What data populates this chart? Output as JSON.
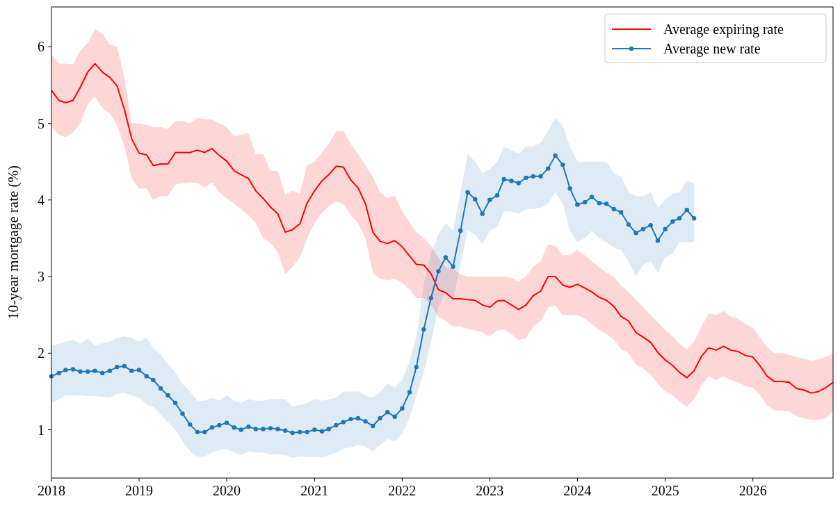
{
  "chart_data": {
    "type": "line",
    "ylabel": "10-year mortgage rate (%)",
    "legend": "top right",
    "grid": false,
    "xlim": [
      "2018-01",
      "2026-12"
    ],
    "xticks": [
      "2018",
      "2019",
      "2020",
      "2021",
      "2022",
      "2023",
      "2024",
      "2025",
      "2026"
    ],
    "ylim": [
      0.37,
      6.52
    ],
    "yticks": [
      1,
      2,
      3,
      4,
      5,
      6
    ],
    "series": [
      {
        "name": "Average expiring rate",
        "color": "#ff0000",
        "marker": "none",
        "x": [
          "2018-01",
          "2018-02",
          "2018-03",
          "2018-04",
          "2018-05",
          "2018-06",
          "2018-07",
          "2018-08",
          "2018-09",
          "2018-10",
          "2018-11",
          "2018-12",
          "2019-01",
          "2019-02",
          "2019-03",
          "2019-04",
          "2019-05",
          "2019-06",
          "2019-07",
          "2019-08",
          "2019-09",
          "2019-10",
          "2019-11",
          "2019-12",
          "2020-01",
          "2020-02",
          "2020-03",
          "2020-04",
          "2020-05",
          "2020-06",
          "2020-07",
          "2020-08",
          "2020-09",
          "2020-10",
          "2020-11",
          "2020-12",
          "2021-01",
          "2021-02",
          "2021-03",
          "2021-04",
          "2021-05",
          "2021-06",
          "2021-07",
          "2021-08",
          "2021-09",
          "2021-10",
          "2021-11",
          "2021-12",
          "2022-01",
          "2022-02",
          "2022-03",
          "2022-04",
          "2022-05",
          "2022-06",
          "2022-07",
          "2022-08",
          "2022-09",
          "2022-10",
          "2022-11",
          "2022-12",
          "2023-01",
          "2023-02",
          "2023-03",
          "2023-04",
          "2023-05",
          "2023-06",
          "2023-07",
          "2023-08",
          "2023-09",
          "2023-10",
          "2023-11",
          "2023-12",
          "2024-01",
          "2024-02",
          "2024-03",
          "2024-04",
          "2024-05",
          "2024-06",
          "2024-07",
          "2024-08",
          "2024-09",
          "2024-10",
          "2024-11",
          "2024-12",
          "2025-01",
          "2025-02",
          "2025-03",
          "2025-04",
          "2025-05",
          "2025-06",
          "2025-07",
          "2025-08",
          "2025-09",
          "2025-10",
          "2025-11",
          "2025-12",
          "2026-01",
          "2026-02",
          "2026-03",
          "2026-04",
          "2026-05",
          "2026-06",
          "2026-07",
          "2026-08",
          "2026-09",
          "2026-10",
          "2026-11",
          "2026-12"
        ],
        "values": [
          5.43,
          5.3,
          5.27,
          5.3,
          5.47,
          5.67,
          5.78,
          5.67,
          5.6,
          5.49,
          5.18,
          4.8,
          4.61,
          4.59,
          4.45,
          4.47,
          4.47,
          4.62,
          4.62,
          4.62,
          4.65,
          4.62,
          4.67,
          4.58,
          4.51,
          4.38,
          4.33,
          4.28,
          4.12,
          4.02,
          3.91,
          3.82,
          3.58,
          3.61,
          3.69,
          3.96,
          4.12,
          4.25,
          4.33,
          4.44,
          4.43,
          4.26,
          4.16,
          3.95,
          3.58,
          3.46,
          3.43,
          3.47,
          3.39,
          3.27,
          3.16,
          3.15,
          3.04,
          2.83,
          2.79,
          2.71,
          2.71,
          2.7,
          2.69,
          2.63,
          2.6,
          2.68,
          2.69,
          2.63,
          2.57,
          2.63,
          2.75,
          2.81,
          3.0,
          3.0,
          2.89,
          2.86,
          2.9,
          2.85,
          2.8,
          2.73,
          2.69,
          2.61,
          2.48,
          2.42,
          2.27,
          2.21,
          2.14,
          2.01,
          1.91,
          1.84,
          1.75,
          1.68,
          1.77,
          1.96,
          2.07,
          2.04,
          2.09,
          2.04,
          2.02,
          1.97,
          1.95,
          1.83,
          1.7,
          1.63,
          1.63,
          1.62,
          1.54,
          1.52,
          1.48,
          1.5,
          1.55,
          1.62
        ],
        "upper": [
          5.9,
          5.78,
          5.78,
          5.77,
          5.95,
          6.05,
          6.23,
          6.17,
          6.03,
          6.0,
          5.6,
          5.0,
          5.0,
          4.98,
          4.95,
          4.95,
          4.93,
          5.03,
          5.03,
          5.0,
          5.07,
          5.06,
          5.05,
          5.0,
          4.95,
          4.83,
          4.85,
          4.87,
          4.6,
          4.6,
          4.38,
          4.38,
          4.07,
          4.12,
          4.08,
          4.45,
          4.5,
          4.62,
          4.73,
          4.9,
          4.9,
          4.73,
          4.6,
          4.45,
          4.3,
          4.1,
          4.02,
          4.06,
          3.85,
          3.71,
          3.58,
          3.5,
          3.4,
          3.25,
          3.12,
          3.1,
          3.03,
          3.0,
          3.0,
          3.0,
          3.0,
          3.0,
          3.0,
          2.98,
          2.94,
          3.0,
          3.13,
          3.2,
          3.42,
          3.4,
          3.28,
          3.28,
          3.35,
          3.28,
          3.2,
          3.12,
          3.05,
          3.0,
          2.88,
          2.8,
          2.7,
          2.6,
          2.5,
          2.4,
          2.3,
          2.22,
          2.12,
          2.05,
          2.15,
          2.35,
          2.52,
          2.5,
          2.55,
          2.48,
          2.45,
          2.38,
          2.33,
          2.2,
          2.08,
          2.0,
          2.0,
          1.98,
          1.95,
          1.93,
          1.9,
          1.92,
          1.95,
          2.0
        ],
        "lower": [
          4.95,
          4.85,
          4.82,
          4.88,
          5.0,
          5.25,
          5.35,
          5.2,
          5.13,
          4.98,
          4.7,
          4.28,
          4.15,
          4.15,
          4.0,
          4.05,
          4.05,
          4.2,
          4.22,
          4.23,
          4.22,
          4.16,
          4.23,
          4.1,
          4.02,
          3.95,
          3.88,
          3.8,
          3.7,
          3.5,
          3.44,
          3.32,
          3.03,
          3.13,
          3.25,
          3.5,
          3.7,
          3.83,
          3.92,
          3.98,
          3.95,
          3.8,
          3.7,
          3.5,
          3.05,
          2.97,
          2.95,
          2.97,
          2.92,
          2.83,
          2.72,
          2.72,
          2.63,
          2.48,
          2.42,
          2.35,
          2.35,
          2.32,
          2.3,
          2.27,
          2.22,
          2.3,
          2.31,
          2.25,
          2.17,
          2.2,
          2.35,
          2.42,
          2.6,
          2.62,
          2.5,
          2.5,
          2.5,
          2.45,
          2.38,
          2.3,
          2.25,
          2.18,
          2.05,
          2.0,
          1.85,
          1.8,
          1.72,
          1.6,
          1.5,
          1.45,
          1.37,
          1.3,
          1.4,
          1.58,
          1.7,
          1.65,
          1.7,
          1.65,
          1.62,
          1.57,
          1.55,
          1.45,
          1.32,
          1.25,
          1.25,
          1.24,
          1.18,
          1.15,
          1.13,
          1.13,
          1.15,
          1.25
        ]
      },
      {
        "name": "Average new rate",
        "color": "#1f77b4",
        "marker": "circle",
        "x": [
          "2018-01",
          "2018-02",
          "2018-03",
          "2018-04",
          "2018-05",
          "2018-06",
          "2018-07",
          "2018-08",
          "2018-09",
          "2018-10",
          "2018-11",
          "2018-12",
          "2019-01",
          "2019-02",
          "2019-03",
          "2019-04",
          "2019-05",
          "2019-06",
          "2019-07",
          "2019-08",
          "2019-09",
          "2019-10",
          "2019-11",
          "2019-12",
          "2020-01",
          "2020-02",
          "2020-03",
          "2020-04",
          "2020-05",
          "2020-06",
          "2020-07",
          "2020-08",
          "2020-09",
          "2020-10",
          "2020-11",
          "2020-12",
          "2021-01",
          "2021-02",
          "2021-03",
          "2021-04",
          "2021-05",
          "2021-06",
          "2021-07",
          "2021-08",
          "2021-09",
          "2021-10",
          "2021-11",
          "2021-12",
          "2022-01",
          "2022-02",
          "2022-03",
          "2022-04",
          "2022-05",
          "2022-06",
          "2022-07",
          "2022-08",
          "2022-09",
          "2022-10",
          "2022-11",
          "2022-12",
          "2023-01",
          "2023-02",
          "2023-03",
          "2023-04",
          "2023-05",
          "2023-06",
          "2023-07",
          "2023-08",
          "2023-09",
          "2023-10",
          "2023-11",
          "2023-12",
          "2024-01",
          "2024-02",
          "2024-03",
          "2024-04",
          "2024-05",
          "2024-06",
          "2024-07",
          "2024-08",
          "2024-09",
          "2024-10",
          "2024-11",
          "2024-12",
          "2025-01",
          "2025-02",
          "2025-03",
          "2025-04",
          "2025-05"
        ],
        "values": [
          1.7,
          1.74,
          1.78,
          1.79,
          1.76,
          1.76,
          1.77,
          1.74,
          1.77,
          1.82,
          1.83,
          1.77,
          1.78,
          1.7,
          1.65,
          1.54,
          1.45,
          1.35,
          1.21,
          1.07,
          0.97,
          0.97,
          1.03,
          1.06,
          1.09,
          1.03,
          1.0,
          1.04,
          1.01,
          1.01,
          1.02,
          1.01,
          0.99,
          0.96,
          0.97,
          0.97,
          1.0,
          0.98,
          1.01,
          1.06,
          1.1,
          1.14,
          1.15,
          1.11,
          1.05,
          1.15,
          1.23,
          1.17,
          1.28,
          1.49,
          1.82,
          2.31,
          2.72,
          3.07,
          3.25,
          3.13,
          3.6,
          4.1,
          4.01,
          3.82,
          4.0,
          4.06,
          4.27,
          4.25,
          4.22,
          4.29,
          4.31,
          4.31,
          4.41,
          4.58,
          4.46,
          4.15,
          3.94,
          3.97,
          4.04,
          3.96,
          3.95,
          3.88,
          3.84,
          3.68,
          3.57,
          3.62,
          3.67,
          3.47,
          3.62,
          3.72,
          3.76,
          3.87,
          3.76
        ],
        "upper": [
          2.1,
          2.12,
          2.15,
          2.18,
          2.12,
          2.2,
          2.1,
          2.13,
          2.15,
          2.2,
          2.22,
          2.2,
          2.15,
          2.2,
          2.07,
          1.98,
          1.85,
          1.75,
          1.6,
          1.5,
          1.38,
          1.38,
          1.42,
          1.38,
          1.45,
          1.38,
          1.35,
          1.4,
          1.38,
          1.38,
          1.4,
          1.4,
          1.4,
          1.3,
          1.33,
          1.35,
          1.4,
          1.38,
          1.4,
          1.42,
          1.5,
          1.5,
          1.5,
          1.45,
          1.42,
          1.5,
          1.6,
          1.55,
          1.65,
          1.9,
          2.2,
          2.9,
          3.3,
          3.55,
          3.7,
          3.6,
          4.1,
          4.6,
          4.5,
          4.35,
          4.4,
          4.5,
          4.7,
          4.65,
          4.6,
          4.7,
          4.7,
          4.75,
          4.9,
          5.07,
          4.97,
          4.7,
          4.5,
          4.5,
          4.5,
          4.5,
          4.5,
          4.35,
          4.3,
          4.1,
          4.05,
          4.05,
          4.1,
          3.9,
          4.0,
          4.08,
          4.1,
          4.25,
          4.22
        ],
        "lower": [
          1.35,
          1.4,
          1.45,
          1.45,
          1.45,
          1.44,
          1.44,
          1.43,
          1.42,
          1.47,
          1.48,
          1.45,
          1.42,
          1.33,
          1.3,
          1.2,
          1.1,
          1.0,
          0.85,
          0.72,
          0.65,
          0.65,
          0.7,
          0.74,
          0.75,
          0.7,
          0.67,
          0.72,
          0.7,
          0.7,
          0.68,
          0.68,
          0.67,
          0.63,
          0.65,
          0.65,
          0.65,
          0.64,
          0.67,
          0.7,
          0.75,
          0.77,
          0.8,
          0.78,
          0.72,
          0.8,
          0.88,
          0.85,
          0.95,
          1.15,
          1.45,
          1.75,
          2.15,
          2.6,
          2.8,
          2.7,
          3.15,
          3.6,
          3.55,
          3.42,
          3.6,
          3.65,
          3.85,
          3.85,
          3.82,
          3.88,
          3.88,
          3.9,
          3.95,
          4.1,
          3.95,
          3.6,
          3.45,
          3.5,
          3.6,
          3.5,
          3.45,
          3.38,
          3.35,
          3.2,
          3.0,
          3.15,
          3.2,
          3.05,
          3.25,
          3.3,
          3.45,
          3.45,
          3.45
        ]
      }
    ]
  }
}
